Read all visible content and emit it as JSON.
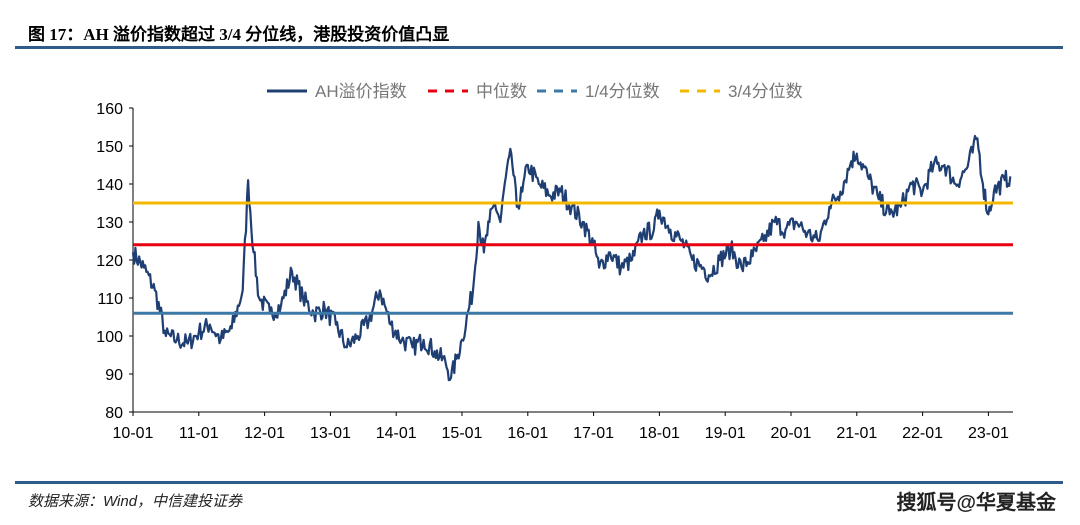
{
  "header": {
    "title": "图 17：AH 溢价指数超过 3/4 分位线，港股投资价值凸显"
  },
  "footer": {
    "source": "数据来源：Wind，中信建投证券",
    "watermark": "搜狐号@华夏基金"
  },
  "chart_data": {
    "type": "line",
    "title": "",
    "xlabel": "",
    "ylabel": "",
    "ylim": [
      80,
      160
    ],
    "yticks": [
      "80",
      "90",
      "100",
      "110",
      "120",
      "130",
      "140",
      "150",
      "160"
    ],
    "xticks": [
      "10-01",
      "11-01",
      "12-01",
      "13-01",
      "14-01",
      "15-01",
      "16-01",
      "17-01",
      "18-01",
      "19-01",
      "20-01",
      "21-01",
      "22-01",
      "23-01"
    ],
    "legend": {
      "placement": "top-center",
      "entries": [
        "AH溢价指数",
        "中位数",
        "1/4分位数",
        "3/4分位数"
      ]
    },
    "colors": {
      "series": "#1f3f73",
      "median": "#e60012",
      "q1": "#3d79a6",
      "q3": "#f5b800"
    },
    "reference_lines": {
      "median": 124,
      "q1": 106,
      "q3": 135
    },
    "series": [
      {
        "name": "AH溢价指数",
        "points": [
          [
            "2010-01",
            122
          ],
          [
            "2010-03",
            118
          ],
          [
            "2010-05",
            112
          ],
          [
            "2010-07",
            100
          ],
          [
            "2010-09",
            99
          ],
          [
            "2010-11",
            98
          ],
          [
            "2011-01",
            101
          ],
          [
            "2011-03",
            103
          ],
          [
            "2011-05",
            99
          ],
          [
            "2011-07",
            102
          ],
          [
            "2011-09",
            112
          ],
          [
            "2011-10",
            141
          ],
          [
            "2011-11",
            122
          ],
          [
            "2011-12",
            110
          ],
          [
            "2012-02",
            106
          ],
          [
            "2012-04",
            108
          ],
          [
            "2012-06",
            117
          ],
          [
            "2012-08",
            110
          ],
          [
            "2012-10",
            106
          ],
          [
            "2012-12",
            107
          ],
          [
            "2013-02",
            103
          ],
          [
            "2013-04",
            97
          ],
          [
            "2013-06",
            100
          ],
          [
            "2013-08",
            104
          ],
          [
            "2013-10",
            112
          ],
          [
            "2013-12",
            103
          ],
          [
            "2014-02",
            99
          ],
          [
            "2014-04",
            97
          ],
          [
            "2014-06",
            99
          ],
          [
            "2014-08",
            96
          ],
          [
            "2014-10",
            93
          ],
          [
            "2014-11",
            89
          ],
          [
            "2014-12",
            94
          ],
          [
            "2015-01",
            99
          ],
          [
            "2015-03",
            112
          ],
          [
            "2015-04",
            130
          ],
          [
            "2015-05",
            122
          ],
          [
            "2015-06",
            130
          ],
          [
            "2015-07",
            135
          ],
          [
            "2015-08",
            130
          ],
          [
            "2015-09",
            142
          ],
          [
            "2015-10",
            148
          ],
          [
            "2015-11",
            134
          ],
          [
            "2015-12",
            138
          ],
          [
            "2016-01",
            145
          ],
          [
            "2016-03",
            140
          ],
          [
            "2016-05",
            137
          ],
          [
            "2016-07",
            138
          ],
          [
            "2016-09",
            134
          ],
          [
            "2016-11",
            130
          ],
          [
            "2017-01",
            124
          ],
          [
            "2017-02",
            118
          ],
          [
            "2017-04",
            122
          ],
          [
            "2017-06",
            118
          ],
          [
            "2017-08",
            120
          ],
          [
            "2017-10",
            127
          ],
          [
            "2017-12",
            128
          ],
          [
            "2018-01",
            133
          ],
          [
            "2018-03",
            128
          ],
          [
            "2018-05",
            125
          ],
          [
            "2018-07",
            120
          ],
          [
            "2018-09",
            118
          ],
          [
            "2018-10",
            116
          ],
          [
            "2018-12",
            120
          ],
          [
            "2019-02",
            123
          ],
          [
            "2019-04",
            118
          ],
          [
            "2019-06",
            121
          ],
          [
            "2019-08",
            125
          ],
          [
            "2019-10",
            130
          ],
          [
            "2019-12",
            128
          ],
          [
            "2020-02",
            130
          ],
          [
            "2020-04",
            127
          ],
          [
            "2020-06",
            125
          ],
          [
            "2020-08",
            134
          ],
          [
            "2020-10",
            138
          ],
          [
            "2020-12",
            146
          ],
          [
            "2021-01",
            148
          ],
          [
            "2021-03",
            142
          ],
          [
            "2021-05",
            136
          ],
          [
            "2021-07",
            132
          ],
          [
            "2021-09",
            134
          ],
          [
            "2021-11",
            140
          ],
          [
            "2022-01",
            138
          ],
          [
            "2022-03",
            145
          ],
          [
            "2022-05",
            145
          ],
          [
            "2022-07",
            140
          ],
          [
            "2022-09",
            144
          ],
          [
            "2022-11",
            152
          ],
          [
            "2022-12",
            140
          ],
          [
            "2023-01",
            132
          ],
          [
            "2023-02",
            138
          ],
          [
            "2023-04",
            141
          ],
          [
            "2023-05",
            142
          ]
        ]
      }
    ]
  }
}
